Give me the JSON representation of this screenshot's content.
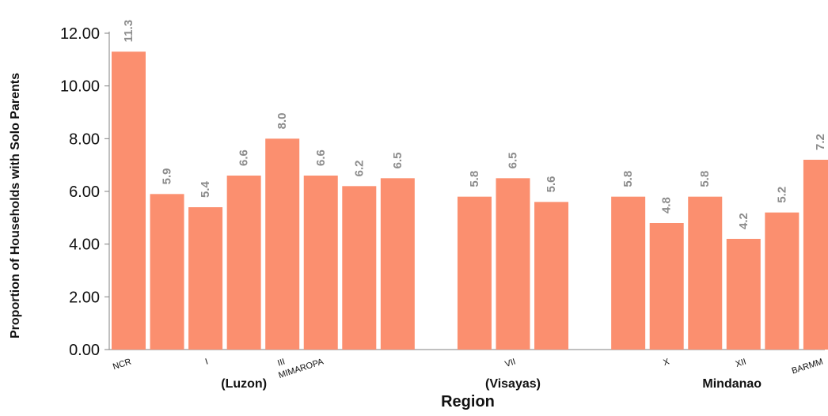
{
  "chart_data": {
    "type": "bar",
    "ylabel": "Proportion of Households with Solo Parents",
    "xlabel": "Region",
    "ylim": [
      0,
      12
    ],
    "yticks": [
      "0.00",
      "2.00",
      "4.00",
      "6.00",
      "8.00",
      "10.00",
      "12.00"
    ],
    "bar_color": "#fb8f6f",
    "grid": false,
    "legend": "none",
    "bars": [
      {
        "slot": 0,
        "value": 11.3,
        "label": "11.3",
        "tick": "NCR"
      },
      {
        "slot": 1,
        "value": 5.9,
        "label": "5.9",
        "tick": ""
      },
      {
        "slot": 2,
        "value": 5.4,
        "label": "5.4",
        "tick": "I"
      },
      {
        "slot": 3,
        "value": 6.6,
        "label": "6.6",
        "tick": ""
      },
      {
        "slot": 4,
        "value": 8.0,
        "label": "8.0",
        "tick": "III"
      },
      {
        "slot": 5,
        "value": 6.6,
        "label": "6.6",
        "tick": "MIMAROPA"
      },
      {
        "slot": 6,
        "value": 6.2,
        "label": "6.2",
        "tick": ""
      },
      {
        "slot": 7,
        "value": 6.5,
        "label": "6.5",
        "tick": ""
      },
      {
        "slot": 9,
        "value": 5.8,
        "label": "5.8",
        "tick": ""
      },
      {
        "slot": 10,
        "value": 6.5,
        "label": "6.5",
        "tick": "VII"
      },
      {
        "slot": 11,
        "value": 5.6,
        "label": "5.6",
        "tick": ""
      },
      {
        "slot": 13,
        "value": 5.8,
        "label": "5.8",
        "tick": ""
      },
      {
        "slot": 14,
        "value": 4.8,
        "label": "4.8",
        "tick": "X"
      },
      {
        "slot": 15,
        "value": 5.8,
        "label": "5.8",
        "tick": ""
      },
      {
        "slot": 16,
        "value": 4.2,
        "label": "4.2",
        "tick": "XII"
      },
      {
        "slot": 17,
        "value": 5.2,
        "label": "5.2",
        "tick": ""
      },
      {
        "slot": 18,
        "value": 7.2,
        "label": "7.2",
        "tick": "BARMM"
      }
    ],
    "group_labels": [
      {
        "text": "(Luzon)",
        "slot": 3
      },
      {
        "text": "(Visayas)",
        "slot": 10
      },
      {
        "text": "Mindanao",
        "slot": 15.7
      }
    ]
  }
}
